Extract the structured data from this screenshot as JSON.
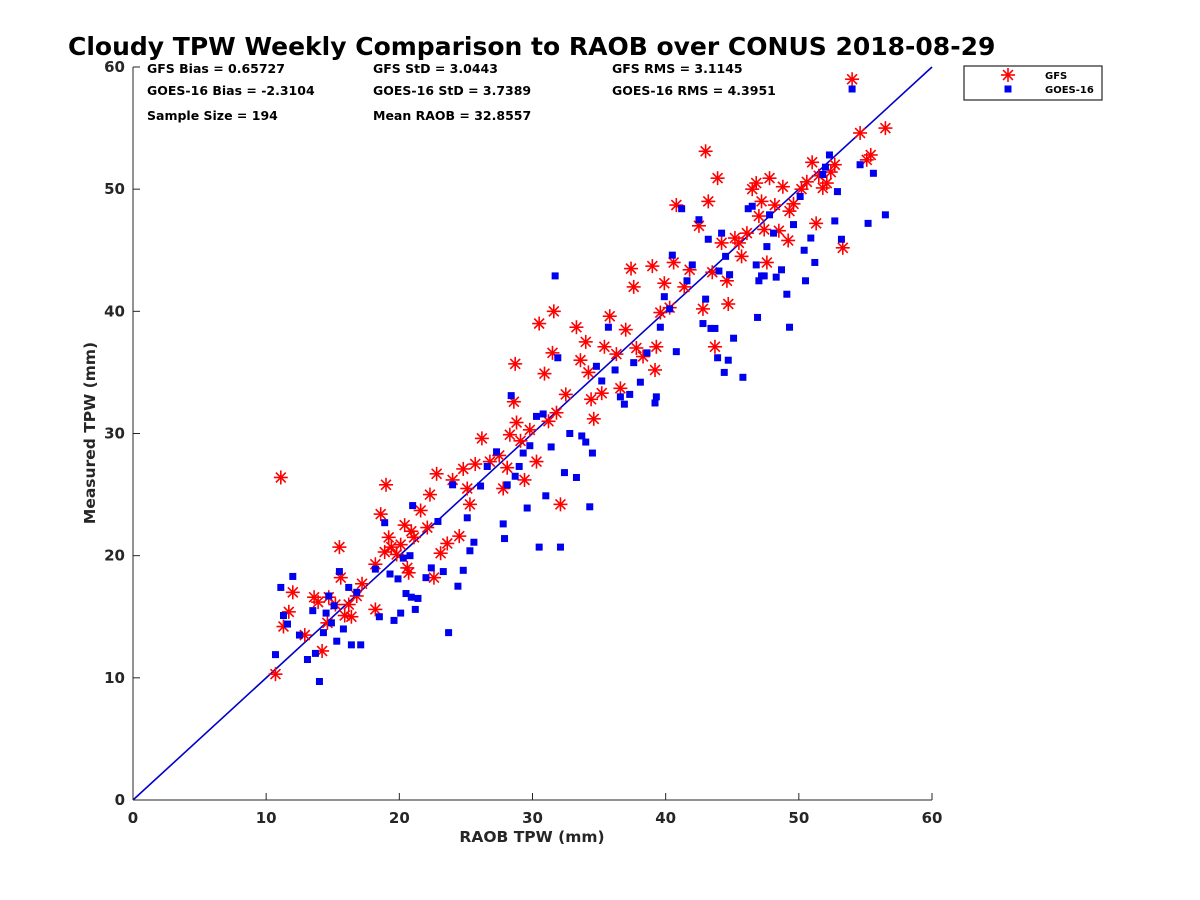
{
  "chart_data": {
    "type": "scatter",
    "title": "Cloudy TPW Weekly Comparison to RAOB over CONUS 2018-08-29",
    "xlabel": "RAOB TPW (mm)",
    "ylabel": "Measured TPW (mm)",
    "xlim": [
      0,
      60
    ],
    "ylim": [
      0,
      60
    ],
    "xticks": [
      0,
      10,
      20,
      30,
      40,
      50,
      60
    ],
    "yticks": [
      0,
      10,
      20,
      30,
      40,
      50,
      60
    ],
    "grid": false,
    "legend_position": "outside-top-right",
    "stats": [
      [
        "GFS Bias = 0.65727",
        "GFS StD = 3.0443",
        "GFS RMS = 3.1145"
      ],
      [
        "GOES-16 Bias = -2.3104",
        "GOES-16 StD = 3.7389",
        "GOES-16 RMS = 4.3951"
      ],
      [
        "Sample Size = 194",
        "Mean RAOB = 32.8557",
        ""
      ]
    ],
    "reference_line": {
      "x": [
        0,
        60
      ],
      "y": [
        0,
        60
      ],
      "color": "#0000cc"
    },
    "series": [
      {
        "name": "GFS",
        "marker": "asterisk",
        "color": "#ff0000",
        "points": [
          [
            11.1,
            26.4
          ],
          [
            10.7,
            10.3
          ],
          [
            11.3,
            14.2
          ],
          [
            11.7,
            15.4
          ],
          [
            12.0,
            17.0
          ],
          [
            12.9,
            13.5
          ],
          [
            13.6,
            16.6
          ],
          [
            13.9,
            16.2
          ],
          [
            14.2,
            12.2
          ],
          [
            14.6,
            14.5
          ],
          [
            14.7,
            16.6
          ],
          [
            15.2,
            16.0
          ],
          [
            15.5,
            20.7
          ],
          [
            15.6,
            18.2
          ],
          [
            15.9,
            15.1
          ],
          [
            16.2,
            16.0
          ],
          [
            16.4,
            15.0
          ],
          [
            16.8,
            16.7
          ],
          [
            17.2,
            17.7
          ],
          [
            18.2,
            19.3
          ],
          [
            18.6,
            23.4
          ],
          [
            18.2,
            15.6
          ],
          [
            18.9,
            20.3
          ],
          [
            19.0,
            25.8
          ],
          [
            19.2,
            21.5
          ],
          [
            19.4,
            20.7
          ],
          [
            19.8,
            20.1
          ],
          [
            20.1,
            20.9
          ],
          [
            20.4,
            22.5
          ],
          [
            20.6,
            19.0
          ],
          [
            20.9,
            22.0
          ],
          [
            21.1,
            21.5
          ],
          [
            20.7,
            18.6
          ],
          [
            21.6,
            23.7
          ],
          [
            22.1,
            22.3
          ],
          [
            22.3,
            25.0
          ],
          [
            22.6,
            18.2
          ],
          [
            22.8,
            26.7
          ],
          [
            23.1,
            20.2
          ],
          [
            23.6,
            21.0
          ],
          [
            24.0,
            26.2
          ],
          [
            24.5,
            21.6
          ],
          [
            24.8,
            27.1
          ],
          [
            25.1,
            25.5
          ],
          [
            25.3,
            24.2
          ],
          [
            25.7,
            27.5
          ],
          [
            26.2,
            29.6
          ],
          [
            26.8,
            27.7
          ],
          [
            27.5,
            28.2
          ],
          [
            27.8,
            25.5
          ],
          [
            28.1,
            27.2
          ],
          [
            28.3,
            29.9
          ],
          [
            28.6,
            32.6
          ],
          [
            28.7,
            35.7
          ],
          [
            28.8,
            30.9
          ],
          [
            29.1,
            29.4
          ],
          [
            29.4,
            26.2
          ],
          [
            29.8,
            30.3
          ],
          [
            30.3,
            27.7
          ],
          [
            30.5,
            39.0
          ],
          [
            30.9,
            34.9
          ],
          [
            31.2,
            31.0
          ],
          [
            31.5,
            36.6
          ],
          [
            31.6,
            40.0
          ],
          [
            31.8,
            31.7
          ],
          [
            32.1,
            24.2
          ],
          [
            32.5,
            33.2
          ],
          [
            33.3,
            38.7
          ],
          [
            33.6,
            36.0
          ],
          [
            34.0,
            37.5
          ],
          [
            34.2,
            35.0
          ],
          [
            34.4,
            32.8
          ],
          [
            34.6,
            31.2
          ],
          [
            35.2,
            33.3
          ],
          [
            35.4,
            37.1
          ],
          [
            35.8,
            39.6
          ],
          [
            36.3,
            36.5
          ],
          [
            36.6,
            33.7
          ],
          [
            37.0,
            38.5
          ],
          [
            37.4,
            43.5
          ],
          [
            37.6,
            42.0
          ],
          [
            37.8,
            37.0
          ],
          [
            38.3,
            36.3
          ],
          [
            39.0,
            43.7
          ],
          [
            39.2,
            35.2
          ],
          [
            39.3,
            37.1
          ],
          [
            39.6,
            39.9
          ],
          [
            39.9,
            42.3
          ],
          [
            40.3,
            40.3
          ],
          [
            40.6,
            44.0
          ],
          [
            40.8,
            48.7
          ],
          [
            41.4,
            42.0
          ],
          [
            41.8,
            43.4
          ],
          [
            42.5,
            47.0
          ],
          [
            42.8,
            40.2
          ],
          [
            43.0,
            53.1
          ],
          [
            43.2,
            49.0
          ],
          [
            43.5,
            43.2
          ],
          [
            43.7,
            37.1
          ],
          [
            43.9,
            50.9
          ],
          [
            44.2,
            45.6
          ],
          [
            44.6,
            42.5
          ],
          [
            44.7,
            40.6
          ],
          [
            45.2,
            46.0
          ],
          [
            45.5,
            45.6
          ],
          [
            45.7,
            44.5
          ],
          [
            46.1,
            46.4
          ],
          [
            46.5,
            50.0
          ],
          [
            46.8,
            50.5
          ],
          [
            47.0,
            47.8
          ],
          [
            47.2,
            49.0
          ],
          [
            47.4,
            46.7
          ],
          [
            47.6,
            44.0
          ],
          [
            47.8,
            50.9
          ],
          [
            48.2,
            48.7
          ],
          [
            48.5,
            46.6
          ],
          [
            48.8,
            50.2
          ],
          [
            49.2,
            45.8
          ],
          [
            49.3,
            48.2
          ],
          [
            49.6,
            48.8
          ],
          [
            50.2,
            50.0
          ],
          [
            50.6,
            50.6
          ],
          [
            51.0,
            52.2
          ],
          [
            51.3,
            47.2
          ],
          [
            51.5,
            51.1
          ],
          [
            51.8,
            50.1
          ],
          [
            52.1,
            50.5
          ],
          [
            52.4,
            51.4
          ],
          [
            52.7,
            52.0
          ],
          [
            53.3,
            45.2
          ],
          [
            54.0,
            59.0
          ],
          [
            54.6,
            54.6
          ],
          [
            55.1,
            52.4
          ],
          [
            55.4,
            52.8
          ],
          [
            56.5,
            55.0
          ]
        ]
      },
      {
        "name": "GOES-16",
        "marker": "square",
        "color": "#0000ee",
        "points": [
          [
            10.7,
            11.9
          ],
          [
            11.1,
            17.4
          ],
          [
            11.3,
            15.1
          ],
          [
            11.6,
            14.4
          ],
          [
            12.0,
            18.3
          ],
          [
            12.5,
            13.5
          ],
          [
            13.1,
            11.5
          ],
          [
            13.5,
            15.5
          ],
          [
            13.7,
            12.0
          ],
          [
            14.0,
            9.7
          ],
          [
            14.3,
            13.7
          ],
          [
            14.5,
            15.3
          ],
          [
            14.7,
            16.7
          ],
          [
            14.9,
            14.5
          ],
          [
            15.1,
            15.9
          ],
          [
            15.3,
            13.0
          ],
          [
            15.5,
            18.7
          ],
          [
            15.8,
            14.0
          ],
          [
            16.2,
            17.4
          ],
          [
            16.4,
            12.7
          ],
          [
            16.8,
            17.0
          ],
          [
            17.1,
            12.7
          ],
          [
            18.2,
            18.9
          ],
          [
            18.5,
            15.0
          ],
          [
            18.9,
            22.7
          ],
          [
            19.3,
            18.5
          ],
          [
            19.6,
            14.7
          ],
          [
            19.9,
            18.1
          ],
          [
            20.1,
            15.3
          ],
          [
            20.3,
            19.8
          ],
          [
            20.5,
            16.9
          ],
          [
            20.8,
            20.0
          ],
          [
            20.9,
            16.6
          ],
          [
            21.0,
            24.1
          ],
          [
            21.2,
            15.6
          ],
          [
            21.4,
            16.5
          ],
          [
            22.0,
            18.2
          ],
          [
            22.4,
            19.0
          ],
          [
            22.9,
            22.8
          ],
          [
            23.3,
            18.7
          ],
          [
            23.7,
            13.7
          ],
          [
            24.0,
            25.8
          ],
          [
            24.4,
            17.5
          ],
          [
            24.8,
            18.8
          ],
          [
            25.1,
            23.1
          ],
          [
            25.3,
            20.4
          ],
          [
            25.6,
            21.1
          ],
          [
            26.1,
            25.7
          ],
          [
            26.6,
            27.3
          ],
          [
            27.3,
            28.5
          ],
          [
            27.8,
            22.6
          ],
          [
            27.9,
            21.4
          ],
          [
            28.1,
            25.8
          ],
          [
            28.4,
            33.1
          ],
          [
            28.7,
            26.5
          ],
          [
            29.0,
            27.3
          ],
          [
            29.3,
            28.4
          ],
          [
            29.6,
            23.9
          ],
          [
            29.8,
            29.0
          ],
          [
            30.3,
            31.4
          ],
          [
            30.5,
            20.7
          ],
          [
            30.8,
            31.6
          ],
          [
            31.0,
            24.9
          ],
          [
            31.4,
            28.9
          ],
          [
            31.7,
            42.9
          ],
          [
            31.9,
            36.2
          ],
          [
            32.1,
            20.7
          ],
          [
            32.4,
            26.8
          ],
          [
            32.8,
            30.0
          ],
          [
            33.3,
            26.4
          ],
          [
            33.7,
            29.8
          ],
          [
            34.0,
            29.3
          ],
          [
            34.3,
            24.0
          ],
          [
            34.5,
            28.4
          ],
          [
            34.8,
            35.5
          ],
          [
            35.2,
            34.3
          ],
          [
            35.7,
            38.7
          ],
          [
            36.2,
            35.2
          ],
          [
            36.6,
            33.0
          ],
          [
            36.9,
            32.4
          ],
          [
            37.3,
            33.2
          ],
          [
            37.6,
            35.8
          ],
          [
            38.1,
            34.2
          ],
          [
            38.6,
            36.6
          ],
          [
            39.2,
            32.5
          ],
          [
            39.3,
            33.0
          ],
          [
            39.6,
            38.7
          ],
          [
            39.9,
            41.2
          ],
          [
            40.3,
            40.2
          ],
          [
            40.5,
            44.6
          ],
          [
            40.8,
            36.7
          ],
          [
            41.2,
            48.4
          ],
          [
            41.6,
            42.5
          ],
          [
            42.0,
            43.8
          ],
          [
            42.5,
            47.5
          ],
          [
            42.8,
            39.0
          ],
          [
            43.0,
            41.0
          ],
          [
            43.2,
            45.9
          ],
          [
            43.4,
            38.6
          ],
          [
            43.7,
            38.6
          ],
          [
            43.9,
            36.2
          ],
          [
            44.0,
            43.3
          ],
          [
            44.2,
            46.4
          ],
          [
            44.4,
            35.0
          ],
          [
            44.5,
            44.5
          ],
          [
            44.7,
            36.0
          ],
          [
            44.8,
            43.0
          ],
          [
            45.1,
            37.8
          ],
          [
            45.8,
            34.6
          ],
          [
            46.2,
            48.4
          ],
          [
            46.5,
            48.6
          ],
          [
            46.8,
            43.8
          ],
          [
            46.9,
            39.5
          ],
          [
            47.0,
            42.5
          ],
          [
            47.2,
            42.9
          ],
          [
            47.4,
            42.9
          ],
          [
            47.6,
            45.3
          ],
          [
            47.8,
            47.9
          ],
          [
            48.1,
            46.4
          ],
          [
            48.3,
            42.8
          ],
          [
            48.7,
            43.4
          ],
          [
            49.1,
            41.4
          ],
          [
            49.3,
            38.7
          ],
          [
            49.6,
            47.1
          ],
          [
            50.1,
            49.4
          ],
          [
            50.4,
            45.0
          ],
          [
            50.5,
            42.5
          ],
          [
            50.9,
            46.0
          ],
          [
            51.2,
            44.0
          ],
          [
            51.8,
            51.2
          ],
          [
            52.0,
            51.8
          ],
          [
            52.3,
            52.8
          ],
          [
            52.7,
            47.4
          ],
          [
            52.9,
            49.8
          ],
          [
            53.2,
            45.9
          ],
          [
            54.0,
            58.2
          ],
          [
            54.6,
            52.0
          ],
          [
            55.2,
            47.2
          ],
          [
            55.6,
            51.3
          ],
          [
            56.5,
            47.9
          ]
        ]
      }
    ]
  }
}
